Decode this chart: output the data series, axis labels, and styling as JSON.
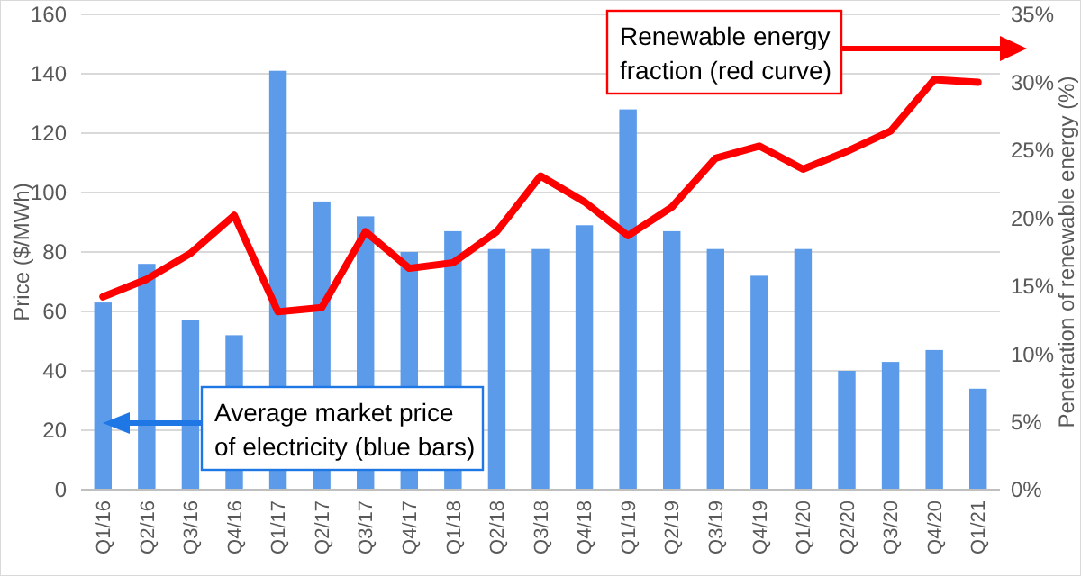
{
  "chart_data": {
    "type": "bar",
    "ylabel": "Price ($/MWh)",
    "y2label": "Penetration of renewable energy (%)",
    "categories": [
      "Q1/16",
      "Q2/16",
      "Q3/16",
      "Q4/16",
      "Q1/17",
      "Q2/17",
      "Q3/17",
      "Q4/17",
      "Q1/18",
      "Q2/18",
      "Q3/18",
      "Q4/18",
      "Q1/19",
      "Q2/19",
      "Q3/19",
      "Q4/19",
      "Q1/20",
      "Q2/20",
      "Q3/20",
      "Q4/20",
      "Q1/21"
    ],
    "series": [
      {
        "color": "#5b9bea",
        "values": [
          63,
          76,
          57,
          52,
          141,
          97,
          92,
          80,
          87,
          81,
          81,
          89,
          128,
          87,
          81,
          72,
          81,
          40,
          43,
          47,
          34
        ]
      },
      {
        "type": "line",
        "axis": "y2",
        "color": "#ff0000",
        "values": [
          14.2,
          15.5,
          17.4,
          20.2,
          13.1,
          13.4,
          19.0,
          16.3,
          16.7,
          19.0,
          23.1,
          21.2,
          18.7,
          20.8,
          24.4,
          25.3,
          23.6,
          24.9,
          26.4,
          30.2,
          30.0
        ]
      }
    ],
    "ylim": [
      0,
      160
    ],
    "yticks": [
      0,
      20,
      40,
      60,
      80,
      100,
      120,
      140,
      160
    ],
    "y2lim": [
      0,
      35
    ],
    "y2ticks": [
      {
        "value": 0,
        "label": "0%"
      },
      {
        "value": 5,
        "label": "5%"
      },
      {
        "value": 10,
        "label": "10%"
      },
      {
        "value": 15,
        "label": "15%"
      },
      {
        "value": 20,
        "label": "20%"
      },
      {
        "value": 25,
        "label": "25%"
      },
      {
        "value": 30,
        "label": "30%"
      },
      {
        "value": 35,
        "label": "35%"
      }
    ],
    "grid": "y",
    "marker": "none",
    "line_style": "solid",
    "annotations": [
      "Renewable energy\nfraction (red curve)",
      "Average market price\nof electricity (blue bars)"
    ]
  }
}
